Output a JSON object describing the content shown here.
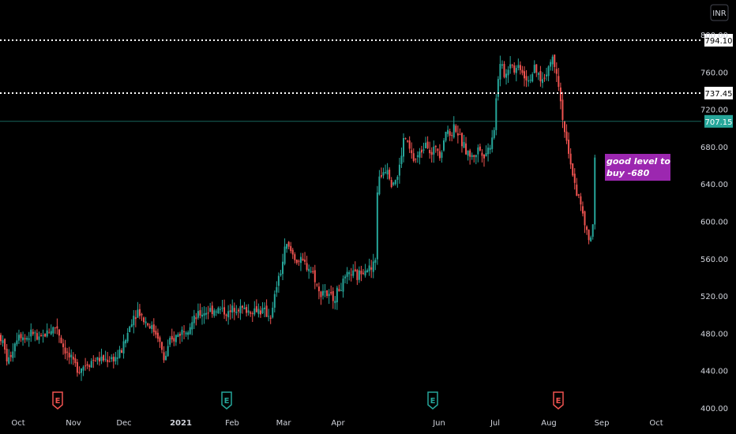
{
  "currency": "INR",
  "colors": {
    "up": "#26a69a",
    "down": "#ef5350",
    "background": "#000000",
    "level_line": "#ffffff",
    "current_price": "#26a69a",
    "annotation_bg": "#9c27b0",
    "earnings_down": "#ef5350",
    "earnings_up": "#26a69a"
  },
  "chart_data": {
    "type": "candlestick",
    "x_axis": {
      "labels": [
        "Oct",
        "Nov",
        "Dec",
        "2021",
        "Feb",
        "Mar",
        "Apr",
        "Jun",
        "Jul",
        "Aug",
        "Sep",
        "Oct"
      ]
    },
    "y_axis": {
      "range": [
        400,
        800
      ],
      "ticks": [
        "400.00",
        "440.00",
        "480.00",
        "520.00",
        "560.00",
        "600.00",
        "640.00",
        "680.00",
        "720.00",
        "760.00",
        "800.00"
      ]
    },
    "price_levels": [
      {
        "label": "794.10",
        "value": 794.1,
        "style": "dotted"
      },
      {
        "label": "737.45",
        "value": 737.45,
        "style": "dotted"
      }
    ],
    "current_price": {
      "label": "707.15",
      "value": 707.15
    },
    "annotation": {
      "line1": "good level to",
      "line2": "buy -680"
    },
    "earnings_markers": [
      {
        "label": "E",
        "month_index": 1,
        "direction": "down"
      },
      {
        "label": "E",
        "month_index": 4,
        "direction": "up"
      },
      {
        "label": "E",
        "month_index": 8,
        "direction": "up"
      },
      {
        "label": "E",
        "month_index": 10,
        "direction": "down"
      }
    ],
    "series_anchors": [
      [
        0,
        478
      ],
      [
        5,
        465
      ],
      [
        10,
        448
      ],
      [
        17,
        466
      ],
      [
        24,
        482
      ],
      [
        31,
        474
      ],
      [
        38,
        478
      ],
      [
        43,
        482
      ],
      [
        48,
        470
      ],
      [
        58,
        480
      ],
      [
        66,
        485
      ],
      [
        72,
        488
      ],
      [
        78,
        470
      ],
      [
        85,
        458
      ],
      [
        92,
        448
      ],
      [
        100,
        442
      ],
      [
        110,
        448
      ],
      [
        120,
        452
      ],
      [
        135,
        452
      ],
      [
        150,
        455
      ],
      [
        158,
        470
      ],
      [
        168,
        498
      ],
      [
        175,
        505
      ],
      [
        182,
        495
      ],
      [
        190,
        488
      ],
      [
        200,
        478
      ],
      [
        208,
        450
      ],
      [
        214,
        468
      ],
      [
        222,
        476
      ],
      [
        232,
        484
      ],
      [
        242,
        490
      ],
      [
        252,
        500
      ],
      [
        262,
        504
      ],
      [
        272,
        506
      ],
      [
        282,
        505
      ],
      [
        290,
        500
      ],
      [
        298,
        510
      ],
      [
        306,
        506
      ],
      [
        316,
        504
      ],
      [
        326,
        506
      ],
      [
        336,
        502
      ],
      [
        344,
        498
      ],
      [
        350,
        530
      ],
      [
        356,
        548
      ],
      [
        362,
        575
      ],
      [
        368,
        568
      ],
      [
        376,
        558
      ],
      [
        384,
        555
      ],
      [
        392,
        550
      ],
      [
        398,
        542
      ],
      [
        404,
        522
      ],
      [
        410,
        528
      ],
      [
        416,
        518
      ],
      [
        424,
        520
      ],
      [
        430,
        528
      ],
      [
        436,
        535
      ],
      [
        444,
        545
      ],
      [
        452,
        540
      ],
      [
        462,
        552
      ],
      [
        470,
        548
      ],
      [
        476,
        560
      ],
      [
        478,
        640
      ],
      [
        484,
        652
      ],
      [
        490,
        660
      ],
      [
        496,
        642
      ],
      [
        504,
        648
      ],
      [
        512,
        692
      ],
      [
        518,
        678
      ],
      [
        524,
        665
      ],
      [
        532,
        672
      ],
      [
        540,
        690
      ],
      [
        546,
        668
      ],
      [
        552,
        682
      ],
      [
        558,
        672
      ],
      [
        564,
        698
      ],
      [
        570,
        692
      ],
      [
        576,
        704
      ],
      [
        582,
        688
      ],
      [
        590,
        676
      ],
      [
        598,
        668
      ],
      [
        606,
        678
      ],
      [
        614,
        672
      ],
      [
        620,
        680
      ],
      [
        626,
        702
      ],
      [
        630,
        752
      ],
      [
        634,
        768
      ],
      [
        640,
        755
      ],
      [
        646,
        772
      ],
      [
        652,
        762
      ],
      [
        658,
        768
      ],
      [
        664,
        756
      ],
      [
        670,
        752
      ],
      [
        676,
        762
      ],
      [
        682,
        756
      ],
      [
        688,
        750
      ],
      [
        694,
        765
      ],
      [
        700,
        776
      ],
      [
        706,
        758
      ],
      [
        710,
        728
      ],
      [
        714,
        702
      ],
      [
        718,
        680
      ],
      [
        722,
        660
      ],
      [
        726,
        650
      ],
      [
        730,
        632
      ],
      [
        734,
        622
      ],
      [
        738,
        606
      ],
      [
        742,
        590
      ],
      [
        746,
        578
      ],
      [
        750,
        588
      ],
      [
        752,
        598
      ],
      [
        754,
        707.15
      ]
    ]
  }
}
